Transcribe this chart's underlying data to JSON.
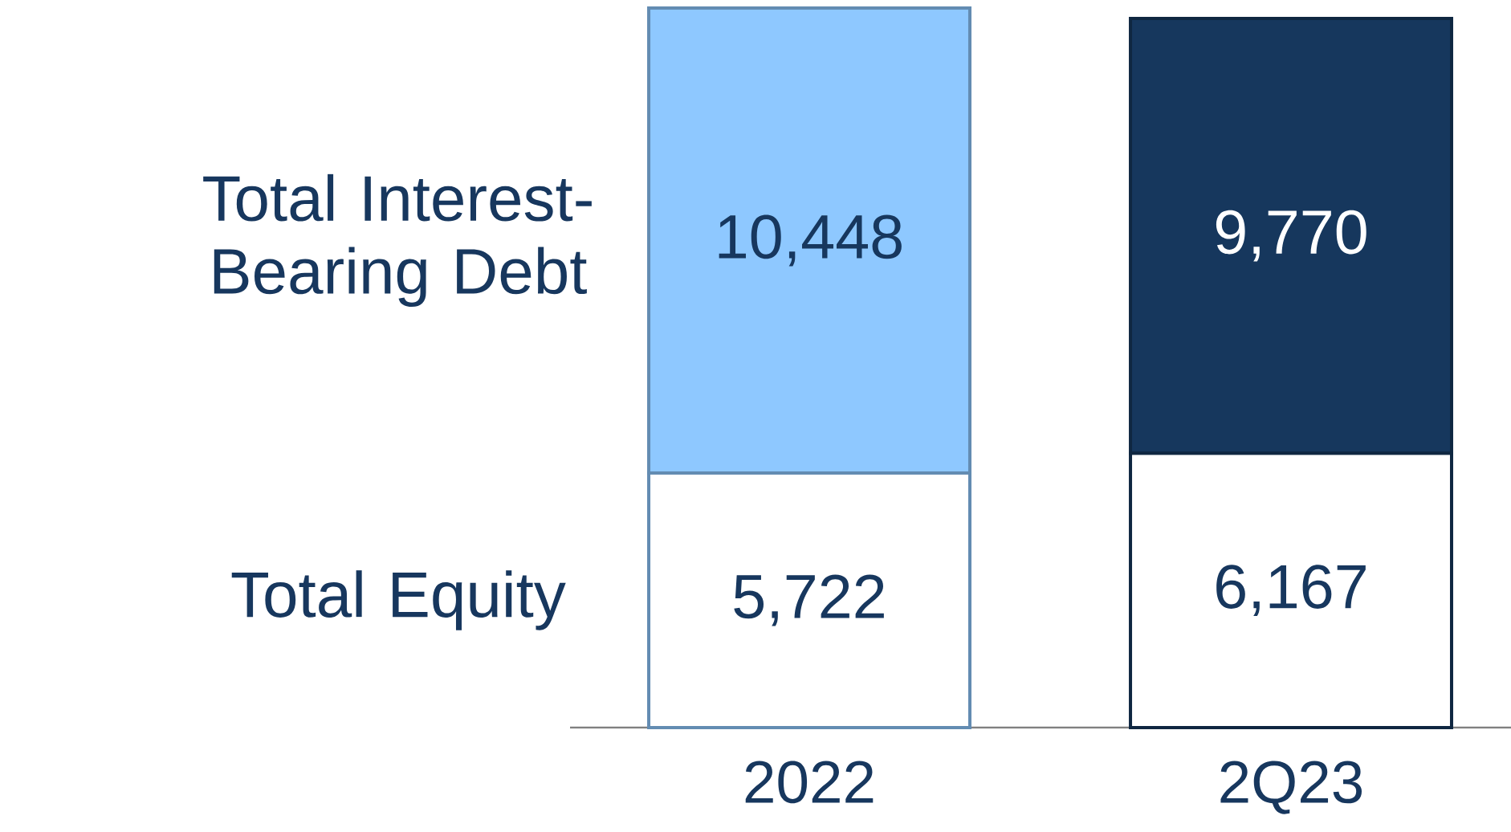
{
  "chart_data": {
    "type": "bar",
    "stacked": true,
    "categories": [
      "2022",
      "2Q23"
    ],
    "series": [
      {
        "name": "Total Equity",
        "colors": [
          "#ffffff",
          "#ffffff"
        ],
        "values": [
          5722,
          6167
        ],
        "value_labels": [
          "5,722",
          "6,167"
        ]
      },
      {
        "name": "Total Interest-Bearing Debt",
        "colors": [
          "#8ec8ff",
          "#16375d"
        ],
        "values": [
          10448,
          9770
        ],
        "value_labels": [
          "10,448",
          "9,770"
        ]
      }
    ]
  }
}
